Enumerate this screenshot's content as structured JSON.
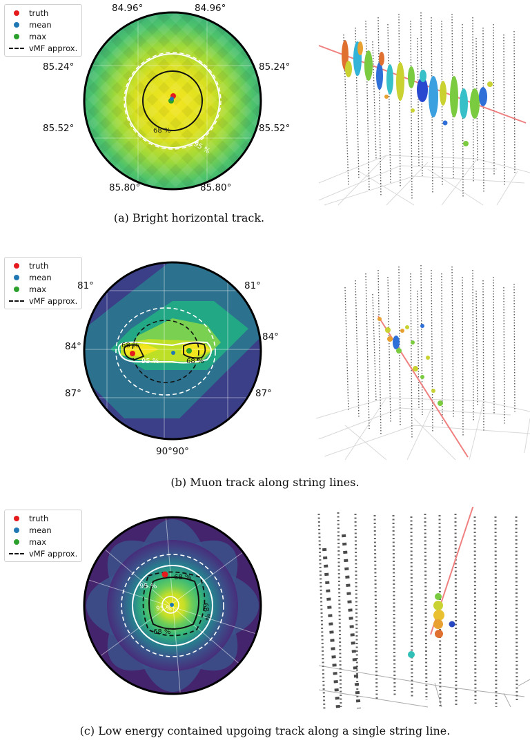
{
  "legend": {
    "items": [
      {
        "label": "truth",
        "color": "#e41a1c",
        "kind": "dot"
      },
      {
        "label": "mean",
        "color": "#1f77b4",
        "kind": "dot"
      },
      {
        "label": "max",
        "color": "#2ca02c",
        "kind": "dot"
      },
      {
        "label": "vMF approx.",
        "color": "#111111",
        "kind": "dash"
      }
    ]
  },
  "panels": [
    {
      "caption": "(a) Bright horizontal track.",
      "ticks": {
        "top_left": "84.96°",
        "top_right": "84.96°",
        "mid_left": "85.24°",
        "mid_right": "85.24°",
        "low_left": "85.52°",
        "low_right": "85.52°",
        "bot_left": "85.80°",
        "bot_right": "85.80°"
      },
      "contour_labels": [
        "68 %",
        "95 %"
      ]
    },
    {
      "caption": "(b) Muon track along string lines.",
      "ticks": {
        "top_left": "81°",
        "top_right": "81°",
        "mid_left": "84°",
        "mid_right": "84°",
        "low_left": "87°",
        "low_right": "87°",
        "bottom": "90°90°"
      },
      "contour_labels": [
        "68 %",
        "68 %",
        "95 %"
      ]
    },
    {
      "caption": "(c) Low energy contained upgoing track along a single string line.",
      "contour_labels": [
        "68 %",
        "95 %",
        "68 %",
        "95 %",
        "68 %"
      ]
    }
  ],
  "colors": {
    "viridis_dark": "#440154",
    "viridis_blue": "#3b528b",
    "viridis_teal": "#21918c",
    "viridis_green": "#5ec962",
    "viridis_yellow": "#fde725",
    "track_line": "#f08080"
  }
}
